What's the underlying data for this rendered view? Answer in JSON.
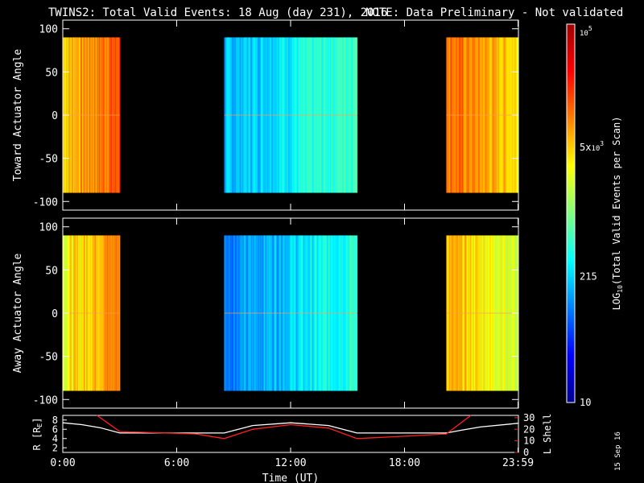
{
  "title": "TWINS2: Total Valid Events: 18 Aug (day 231), 2016",
  "note": "NOTE: Data Preliminary - Not validated",
  "stamp": "15 Sep 16",
  "colors": {
    "note": "#ff2020",
    "lshell": "#ff2020",
    "radius": "#ffffff"
  },
  "chart_data": [
    {
      "type": "heatmap",
      "ylabel": "Toward Actuator Angle",
      "ylim": [
        -110,
        110
      ],
      "yticks": [
        "100",
        "50",
        "0",
        "-50",
        "-100"
      ],
      "ytick_values": [
        100,
        50,
        0,
        -50,
        -100
      ],
      "xlim": [
        0,
        24
      ],
      "data_y_range": [
        -90,
        90
      ],
      "blocks": [
        {
          "start_hour": 0.0,
          "end_hour": 3.0,
          "level_start": 0.68,
          "level_end": 0.8
        },
        {
          "start_hour": 8.5,
          "end_hour": 15.5,
          "level_start": 0.3,
          "level_end": 0.45
        },
        {
          "start_hour": 20.2,
          "end_hour": 23.98,
          "level_start": 0.78,
          "level_end": 0.66
        }
      ]
    },
    {
      "type": "heatmap",
      "ylabel": "Away Actuator Angle",
      "ylim": [
        -110,
        110
      ],
      "yticks": [
        "100",
        "50",
        "0",
        "-50",
        "-100"
      ],
      "ytick_values": [
        100,
        50,
        0,
        -50,
        -100
      ],
      "xlim": [
        0,
        24
      ],
      "data_y_range": [
        -90,
        90
      ],
      "blocks": [
        {
          "start_hour": 0.0,
          "end_hour": 3.0,
          "level_start": 0.62,
          "level_end": 0.76
        },
        {
          "start_hour": 8.5,
          "end_hour": 15.5,
          "level_start": 0.25,
          "level_end": 0.42
        },
        {
          "start_hour": 20.2,
          "end_hour": 23.98,
          "level_start": 0.7,
          "level_end": 0.58
        }
      ]
    },
    {
      "type": "line",
      "xlabel": "Time (UT)",
      "xlim": [
        0,
        24
      ],
      "xticks": [
        "0:00",
        "6:00",
        "12:00",
        "18:00",
        "23:59"
      ],
      "xtick_values": [
        0,
        6,
        12,
        18,
        23.98
      ],
      "ylabel_left": "R [R",
      "ylabel_left_sub": "E",
      "ylabel_left_end": "]",
      "ylim_left": [
        1,
        9
      ],
      "yticks_left": [
        "8",
        "6",
        "4",
        "2"
      ],
      "ytick_left_values": [
        8,
        6,
        4,
        2
      ],
      "ylabel_right": "L Shell",
      "ylim_right": [
        0,
        32
      ],
      "yticks_right": [
        "30",
        "20",
        "10",
        "0"
      ],
      "ytick_right_values": [
        30,
        20,
        10,
        0
      ],
      "series": [
        {
          "axis": "left",
          "x": [
            0,
            1,
            2,
            3,
            8.5,
            10,
            12,
            14,
            15.5,
            20.2,
            21,
            22,
            23.98
          ],
          "y": [
            7.4,
            7.0,
            6.3,
            5.2,
            5.2,
            6.8,
            7.4,
            6.8,
            5.2,
            5.2,
            5.8,
            6.5,
            7.3
          ]
        },
        {
          "axis": "right",
          "x": [
            1.8,
            3,
            5,
            7,
            8.5,
            10,
            12,
            14,
            15.5,
            18,
            20.2,
            21.5
          ],
          "y": [
            32,
            18,
            17,
            16,
            12,
            20,
            24,
            21,
            12,
            14,
            16,
            32
          ]
        }
      ]
    }
  ],
  "colorbar": {
    "label": "LOG",
    "label_sub": "10",
    "label_end": "(Total Valid Events per Scan)",
    "ticks": [
      {
        "base": "10",
        "exp": "5",
        "prefix": "",
        "value": 100000
      },
      {
        "base": "10",
        "exp": "3",
        "prefix": "5x",
        "value": 5000
      },
      {
        "base": "",
        "exp": "",
        "prefix": "215",
        "value": 215
      },
      {
        "base": "",
        "exp": "",
        "prefix": "10",
        "value": 10
      }
    ],
    "range": [
      10,
      100000
    ]
  }
}
